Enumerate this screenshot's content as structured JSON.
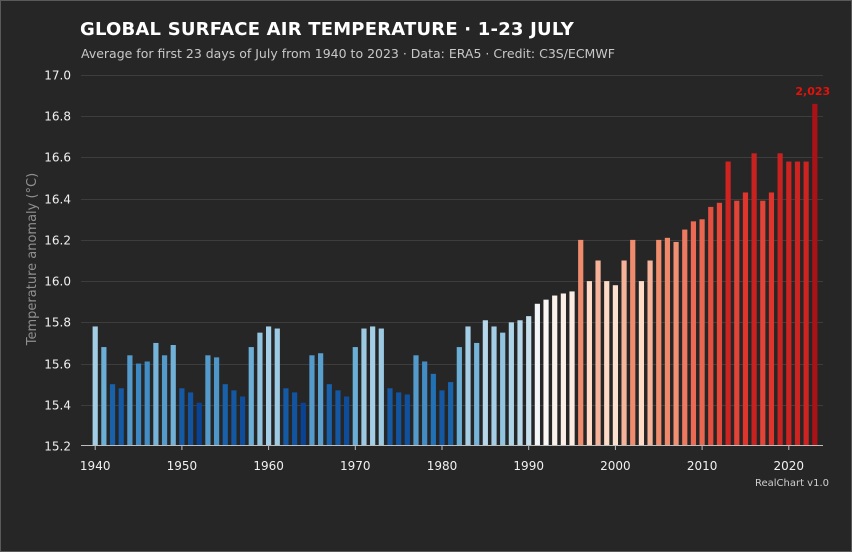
{
  "chart_data": {
    "type": "bar",
    "title": "GLOBAL SURFACE AIR TEMPERATURE · 1-23 JULY",
    "subtitle": "Average for first 23 days of July from 1940 to 2023 · Data: ERA5 · Credit: C3S/ECMWF",
    "xlabel": "",
    "ylabel": "Temperature anomaly (°C)",
    "ylim": [
      15.2,
      17.0
    ],
    "yticks": [
      "15.2",
      "15.4",
      "15.6",
      "15.8",
      "16.0",
      "16.2",
      "16.4",
      "16.6",
      "16.8",
      "17.0"
    ],
    "xticks": [
      "1940",
      "1950",
      "1960",
      "1970",
      "1980",
      "1990",
      "2000",
      "2010",
      "2020"
    ],
    "grid": true,
    "legend": "none",
    "years": [
      1940,
      1941,
      1942,
      1943,
      1944,
      1945,
      1946,
      1947,
      1948,
      1949,
      1950,
      1951,
      1952,
      1953,
      1954,
      1955,
      1956,
      1957,
      1958,
      1959,
      1960,
      1961,
      1962,
      1963,
      1964,
      1965,
      1966,
      1967,
      1968,
      1969,
      1970,
      1971,
      1972,
      1973,
      1974,
      1975,
      1976,
      1977,
      1978,
      1979,
      1980,
      1981,
      1982,
      1983,
      1984,
      1985,
      1986,
      1987,
      1988,
      1989,
      1990,
      1991,
      1992,
      1993,
      1994,
      1995,
      1996,
      1997,
      1998,
      1999,
      2000,
      2001,
      2002,
      2003,
      2004,
      2005,
      2006,
      2007,
      2008,
      2009,
      2010,
      2011,
      2012,
      2013,
      2014,
      2015,
      2016,
      2017,
      2018,
      2019,
      2020,
      2021,
      2022,
      2023
    ],
    "values": [
      15.78,
      15.68,
      15.5,
      15.48,
      15.64,
      15.6,
      15.61,
      15.7,
      15.64,
      15.69,
      15.48,
      15.46,
      15.41,
      15.64,
      15.63,
      15.5,
      15.47,
      15.44,
      15.68,
      15.75,
      15.78,
      15.77,
      15.48,
      15.46,
      15.41,
      15.64,
      15.65,
      15.5,
      15.47,
      15.44,
      15.68,
      15.77,
      15.78,
      15.77,
      15.48,
      15.46,
      15.45,
      15.64,
      15.61,
      15.55,
      15.47,
      15.51,
      15.68,
      15.78,
      15.7,
      15.81,
      15.78,
      15.75,
      15.8,
      15.81,
      15.83,
      15.89,
      15.91,
      15.93,
      15.94,
      15.95,
      16.2,
      16.0,
      16.1,
      16.0,
      15.98,
      16.1,
      16.2,
      16.0,
      16.1,
      16.2,
      16.21,
      16.19,
      16.25,
      16.29,
      16.3,
      16.36,
      16.38,
      16.58,
      16.39,
      16.43,
      16.62,
      16.39,
      16.43,
      16.62,
      16.58,
      16.58,
      16.58,
      16.86
    ],
    "highlight_label": "2,023",
    "colors": {
      "background": "#262626",
      "grid": "#3d3d3d",
      "highlight": "#e3120b"
    }
  },
  "credit": "RealChart v1.0"
}
